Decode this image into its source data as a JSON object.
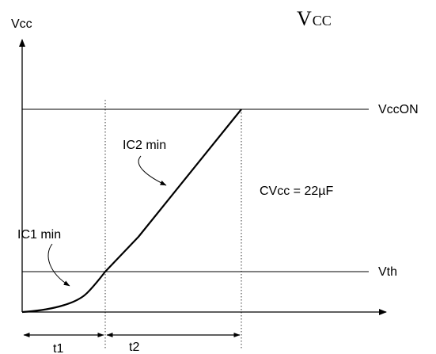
{
  "diagram": {
    "title_main": "V",
    "title_sub": "CC",
    "y_axis_label": "Vcc",
    "levels": {
      "upper": "VccON",
      "lower": "Vth"
    },
    "annotations": {
      "ic2": "IC2 min",
      "ic1": "IC1 min",
      "capacitor": "CVcc = 22µF"
    },
    "intervals": {
      "first": "t1",
      "second": "t2"
    }
  }
}
